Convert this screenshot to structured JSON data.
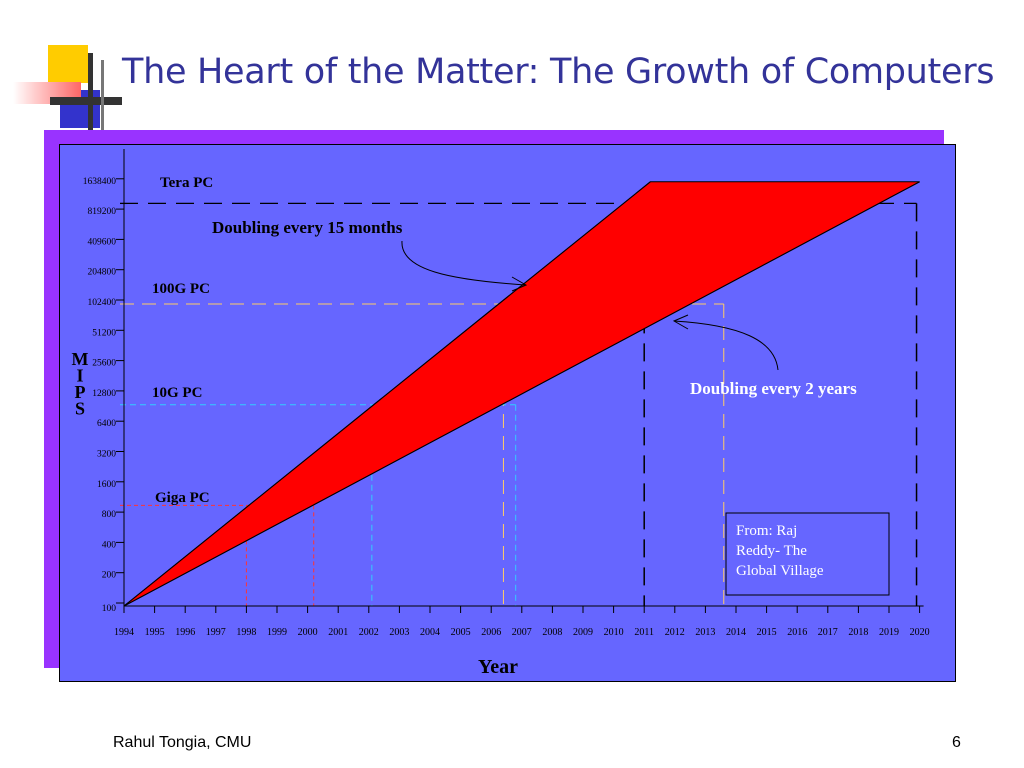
{
  "slide": {
    "title": "The Heart of the Matter: The Growth of Computers",
    "footer_author": "Rahul Tongia, CMU",
    "page_number": "6"
  },
  "colors": {
    "title": "#333399",
    "panel": "#6666ff",
    "shadow": "#9933ff",
    "band": "#ff0000",
    "tera_line": "#000000",
    "g100_line": "#ffcc66",
    "g10_line": "#33ccff",
    "giga_line": "#ff3333"
  },
  "chart_data": {
    "type": "area",
    "xlabel": "Year",
    "ylabel": "M I P S",
    "y_scale": "log2",
    "ylim": [
      100,
      1638400
    ],
    "xlim": [
      1994,
      2020
    ],
    "x_ticks": [
      "1994",
      "1995",
      "1996",
      "1997",
      "1998",
      "1999",
      "2000",
      "2001",
      "2002",
      "2003",
      "2004",
      "2005",
      "2006",
      "2007",
      "2008",
      "2009",
      "2010",
      "2011",
      "2012",
      "2013",
      "2014",
      "2015",
      "2016",
      "2017",
      "2018",
      "2019",
      "2020"
    ],
    "y_ticks": [
      "100",
      "200",
      "400",
      "800",
      "1600",
      "3200",
      "6400",
      "12800",
      "25600",
      "51200",
      "102400",
      "204800",
      "409600",
      "819200",
      "1638400"
    ],
    "series": [
      {
        "name": "Doubling every 15 months",
        "x": [
          1994,
          2011.2
        ],
        "y": [
          100,
          1638400
        ]
      },
      {
        "name": "Doubling every 2 years",
        "x": [
          1994,
          2020
        ],
        "y": [
          100,
          1638400
        ]
      }
    ],
    "levels": [
      {
        "label": "Tera PC",
        "y": 1000000,
        "x_fast": 2011,
        "x_slow": 2019.9
      },
      {
        "label": "100G PC",
        "y": 100000,
        "x_fast": 2006.4,
        "x_slow": 2013.6
      },
      {
        "label": "10G PC",
        "y": 10000,
        "x_fast": 2002.1,
        "x_slow": 2006.8
      },
      {
        "label": "Giga PC",
        "y": 1000,
        "x_fast": 1998,
        "x_slow": 2000.2
      }
    ],
    "annotations": [
      {
        "text": "Doubling every 15 months"
      },
      {
        "text": "Doubling every 2 years"
      }
    ],
    "source_box": [
      "From: Raj",
      "Reddy- The",
      "Global Village"
    ]
  }
}
